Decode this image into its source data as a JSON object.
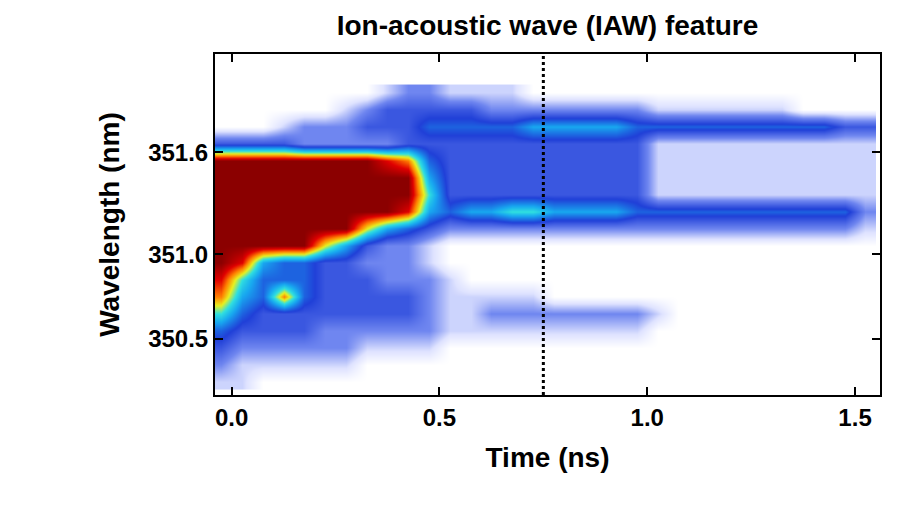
{
  "chart_data": {
    "type": "heatmap",
    "title": "Ion-acoustic wave (IAW) feature",
    "x_label": "Time (ns)",
    "y_label": "Wavelength (nm)",
    "xlim": [
      -0.04,
      1.56
    ],
    "ylim": [
      350.17,
      352.18
    ],
    "xticks": [
      {
        "value": 0,
        "label": "0.0"
      },
      0.5,
      {
        "value": 1,
        "label": "1.0"
      },
      1.5
    ],
    "yticks": [
      350.5,
      {
        "value": 351,
        "label": "351.0"
      },
      351.6
    ],
    "grid": false,
    "zlim": [
      0,
      10
    ],
    "reference_line": {
      "x": 0.75,
      "line_style": "dotted"
    },
    "x": [
      -0.025,
      0.025,
      0.075,
      0.125,
      0.175,
      0.225,
      0.275,
      0.325,
      0.375,
      0.425,
      0.475,
      0.525,
      0.575,
      0.625,
      0.675,
      0.725,
      0.775,
      0.825,
      0.875,
      0.925,
      0.975,
      1.025,
      1.075,
      1.125,
      1.175,
      1.225,
      1.275,
      1.325,
      1.375,
      1.425,
      1.475,
      1.525
    ],
    "y": [
      350.25,
      350.35,
      350.45,
      350.55,
      350.65,
      350.75,
      350.85,
      350.95,
      351.05,
      351.15,
      351.25,
      351.35,
      351.45,
      351.55,
      351.65,
      351.75,
      351.85,
      351.95
    ],
    "z": [
      [
        1,
        1,
        0,
        0,
        0,
        0,
        0,
        0,
        0,
        0,
        0,
        0,
        0,
        0,
        0,
        0,
        0,
        0,
        0,
        0,
        0,
        0,
        0,
        0,
        0,
        0,
        0,
        0,
        0,
        0,
        0,
        0
      ],
      [
        2,
        1,
        1,
        1,
        1,
        1,
        1,
        0,
        0,
        0,
        0,
        0,
        0,
        0,
        0,
        0,
        0,
        0,
        0,
        0,
        0,
        0,
        0,
        0,
        0,
        0,
        0,
        0,
        0,
        0,
        0,
        0
      ],
      [
        3,
        2,
        2,
        2,
        2,
        2,
        2,
        1,
        1,
        1,
        1,
        0,
        0,
        0,
        0,
        0,
        0,
        0,
        0,
        0,
        0,
        0,
        0,
        0,
        0,
        0,
        0,
        0,
        0,
        0,
        0,
        0
      ],
      [
        4,
        3,
        3,
        3,
        3,
        2,
        2,
        2,
        2,
        2,
        2,
        1,
        1,
        1,
        1,
        1,
        1,
        1,
        1,
        1,
        1,
        0,
        0,
        0,
        0,
        0,
        0,
        0,
        0,
        0,
        0,
        0
      ],
      [
        6,
        4,
        3,
        3,
        3,
        3,
        3,
        3,
        3,
        3,
        2,
        1,
        1,
        2,
        2,
        2,
        2,
        2,
        2,
        2,
        2,
        1,
        0,
        0,
        0,
        0,
        0,
        0,
        0,
        0,
        0,
        0
      ],
      [
        8,
        5,
        4,
        8,
        4,
        3,
        3,
        3,
        3,
        3,
        2,
        1,
        1,
        1,
        1,
        1,
        0,
        0,
        0,
        0,
        0,
        0,
        0,
        0,
        0,
        0,
        0,
        0,
        0,
        0,
        0,
        0
      ],
      [
        9,
        6,
        4,
        4,
        4,
        3,
        3,
        3,
        2,
        2,
        2,
        1,
        0,
        0,
        0,
        0,
        0,
        0,
        0,
        0,
        0,
        0,
        0,
        0,
        0,
        0,
        0,
        0,
        0,
        0,
        0,
        0
      ],
      [
        10,
        9,
        5,
        4,
        4,
        3,
        3,
        2,
        2,
        2,
        1,
        0,
        0,
        0,
        0,
        0,
        0,
        0,
        0,
        0,
        0,
        0,
        0,
        0,
        0,
        0,
        0,
        0,
        0,
        0,
        0,
        0
      ],
      [
        10,
        10,
        10,
        10,
        10,
        7,
        5,
        3,
        2,
        2,
        1,
        0,
        0,
        0,
        0,
        0,
        0,
        0,
        0,
        0,
        0,
        0,
        0,
        0,
        0,
        0,
        0,
        0,
        0,
        0,
        0,
        0
      ],
      [
        10,
        10,
        10,
        10,
        10,
        10,
        10,
        7,
        5,
        4,
        3,
        2,
        2,
        2,
        2,
        2,
        2,
        2,
        2,
        2,
        2,
        2,
        2,
        2,
        2,
        2,
        2,
        2,
        2,
        2,
        2,
        1
      ],
      [
        10,
        10,
        10,
        10,
        10,
        10,
        10,
        10,
        10,
        9,
        5,
        4,
        5,
        5,
        6,
        6,
        5,
        5,
        5,
        5,
        4,
        4,
        4,
        4,
        4,
        4,
        4,
        4,
        4,
        4,
        4,
        2
      ],
      [
        10,
        10,
        10,
        10,
        10,
        10,
        10,
        10,
        10,
        10,
        6,
        3,
        3,
        3,
        3,
        3,
        3,
        3,
        3,
        3,
        3,
        1,
        1,
        1,
        1,
        1,
        1,
        1,
        1,
        1,
        1,
        1
      ],
      [
        10,
        10,
        10,
        10,
        10,
        10,
        10,
        10,
        10,
        10,
        5,
        3,
        3,
        3,
        3,
        3,
        3,
        3,
        3,
        3,
        3,
        1,
        1,
        1,
        1,
        1,
        1,
        1,
        1,
        1,
        1,
        1
      ],
      [
        10,
        10,
        10,
        10,
        10,
        10,
        10,
        10,
        9,
        8,
        4,
        3,
        3,
        3,
        3,
        3,
        3,
        3,
        3,
        3,
        3,
        1,
        1,
        1,
        1,
        1,
        1,
        1,
        1,
        1,
        1,
        1
      ],
      [
        3,
        3,
        3,
        3,
        2,
        2,
        2,
        2,
        2,
        3,
        3,
        3,
        3,
        3,
        3,
        3,
        3,
        3,
        3,
        3,
        3,
        1,
        1,
        1,
        1,
        1,
        1,
        1,
        1,
        1,
        1,
        1
      ],
      [
        0,
        0,
        0,
        1,
        2,
        2,
        2,
        3,
        3,
        3,
        4,
        4,
        4,
        4,
        4,
        5,
        5,
        5,
        5,
        5,
        4,
        4,
        4,
        4,
        4,
        4,
        4,
        4,
        4,
        4,
        3,
        3
      ],
      [
        0,
        0,
        0,
        0,
        0,
        0,
        1,
        2,
        3,
        3,
        3,
        3,
        3,
        2,
        2,
        2,
        2,
        2,
        2,
        2,
        2,
        1,
        1,
        1,
        1,
        1,
        1,
        1,
        0,
        0,
        0,
        0
      ],
      [
        0,
        0,
        0,
        0,
        0,
        0,
        0,
        0,
        1,
        2,
        2,
        1,
        1,
        1,
        1,
        0,
        0,
        0,
        0,
        0,
        0,
        0,
        0,
        0,
        0,
        0,
        0,
        0,
        0,
        0,
        0,
        0
      ]
    ]
  }
}
